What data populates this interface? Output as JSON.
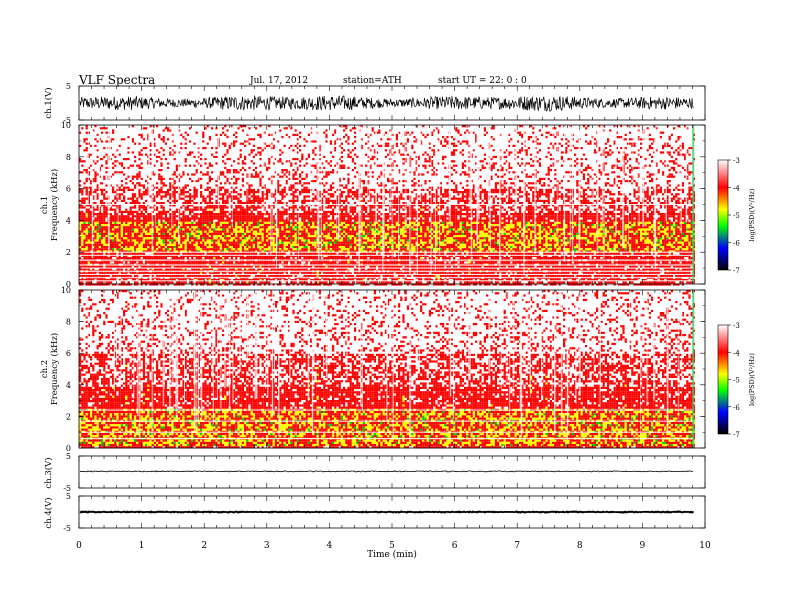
{
  "header": {
    "title": "VLF  Spectra",
    "date": "Jul.  17,  2012",
    "station": "station=ATH",
    "start": "start  UT  =   22: 0  : 0"
  },
  "x_axis": {
    "label": "Time  (min)",
    "ticks": [
      "0",
      "1",
      "2",
      "3",
      "4",
      "5",
      "6",
      "7",
      "8",
      "9",
      "10"
    ]
  },
  "colors": {
    "spec_white": "#ffffff",
    "spec_red": "#ff0000",
    "spec_yellow": "#ffff00",
    "spec_green": "#00cc00",
    "colorbar_stops": [
      "#ffffff",
      "#ff0000",
      "#ffff00",
      "#00ff00",
      "#0000ff",
      "#000000"
    ]
  },
  "chart_data": [
    {
      "type": "line",
      "name": "ch.1 waveform",
      "ylabel": "ch.1(V)",
      "ylim": [
        -5,
        5
      ],
      "yticks": [
        "5",
        "-5"
      ],
      "xlim": [
        0,
        10
      ],
      "data_end_min": 9.82,
      "description_values": {
        "amplitude_range": [
          -2.5,
          2.5
        ]
      }
    },
    {
      "type": "heatmap",
      "name": "ch.1 spectrogram",
      "ylabel": "ch.1\nFrequency  (kHz)",
      "ylim": [
        0,
        10
      ],
      "yticks": [
        "0",
        "2",
        "4",
        "6",
        "8",
        "10"
      ],
      "xlim": [
        0,
        10
      ],
      "data_end_min": 9.82,
      "colorbar": {
        "label": "log(PSD)(V²/Hz)",
        "range": [
          -7,
          -3
        ],
        "ticks": [
          "-3",
          "-4",
          "-5",
          "-6",
          "-7"
        ]
      },
      "band_profile_khz": {
        "dense_red": [
          0.5,
          4.5
        ],
        "yellow_band": [
          2.0,
          4.0
        ],
        "mixed": [
          4.5,
          6.0
        ],
        "sparse": [
          6.0,
          10.0
        ]
      },
      "lines_khz": [
        0.2,
        0.4,
        0.6,
        0.8,
        1.0,
        1.2,
        1.5,
        1.8,
        2.0,
        5.0
      ]
    },
    {
      "type": "heatmap",
      "name": "ch.2 spectrogram",
      "ylabel": "ch.2\nFrequency  (kHz)",
      "ylim": [
        0,
        10
      ],
      "yticks": [
        "0",
        "2",
        "4",
        "6",
        "8",
        "10"
      ],
      "xlim": [
        0,
        10
      ],
      "data_end_min": 9.82,
      "colorbar": {
        "label": "log(PSD)(V²/Hz)",
        "range": [
          -7,
          -3
        ],
        "ticks": [
          "-3",
          "-4",
          "-5",
          "-6",
          "-7"
        ]
      },
      "band_profile_khz": {
        "dense_red": [
          0.0,
          4.0
        ],
        "yellow_band": [
          0.2,
          2.6
        ],
        "mixed": [
          4.0,
          6.0
        ],
        "sparse": [
          6.0,
          10.0
        ]
      },
      "lines_khz": [
        0.6,
        1.0,
        1.7,
        2.4
      ]
    },
    {
      "type": "line",
      "name": "ch.3 waveform",
      "ylabel": "ch.3(V)",
      "ylim": [
        -5,
        5
      ],
      "yticks": [
        "5",
        "-5"
      ],
      "xlim": [
        0,
        10
      ],
      "data_end_min": 9.82,
      "description_values": {
        "level": 0.2,
        "amplitude_range": [
          -0.15,
          0.15
        ]
      }
    },
    {
      "type": "line",
      "name": "ch.4 waveform",
      "ylabel": "ch.4(V)",
      "ylim": [
        -5,
        5
      ],
      "yticks": [
        "5",
        "-5"
      ],
      "xlim": [
        0,
        10
      ],
      "data_end_min": 9.82,
      "description_values": {
        "level": 0.0,
        "amplitude_range": [
          -0.25,
          0.25
        ]
      }
    }
  ]
}
